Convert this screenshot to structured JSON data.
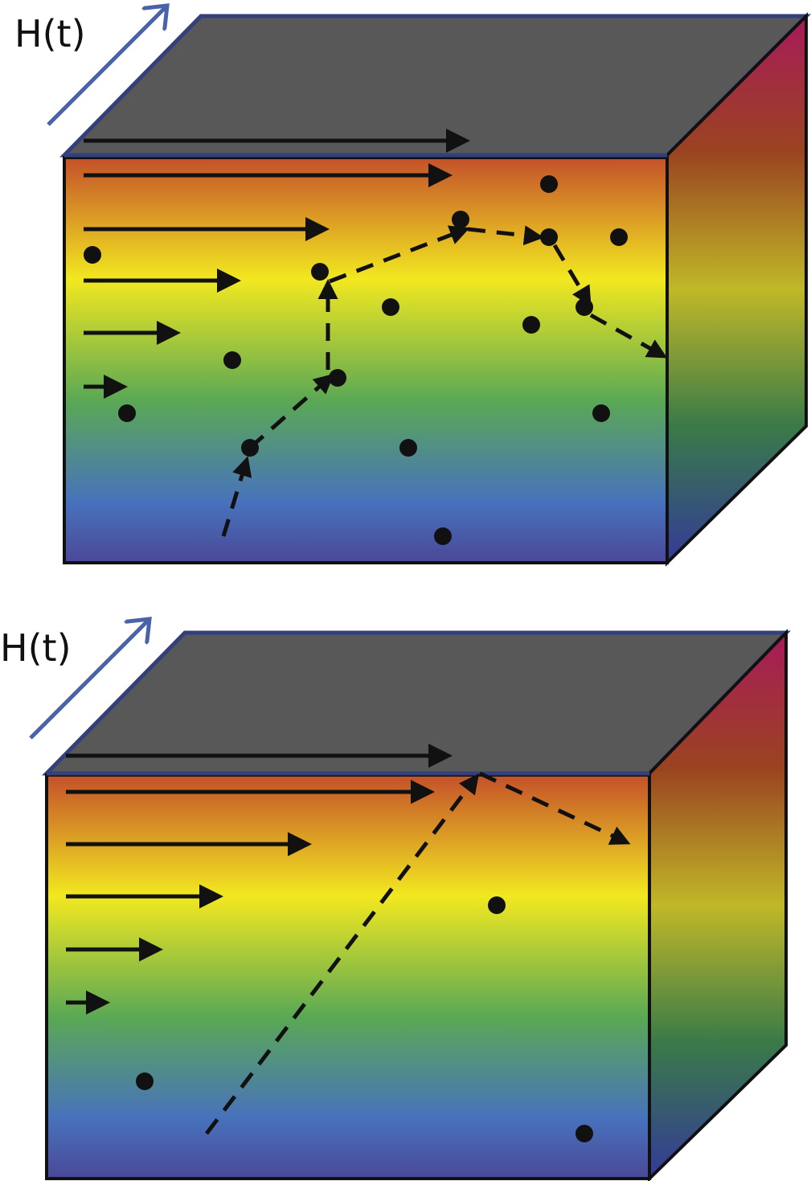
{
  "panels": [
    {
      "label": "H(t)"
    },
    {
      "label": "H(t)"
    }
  ]
}
